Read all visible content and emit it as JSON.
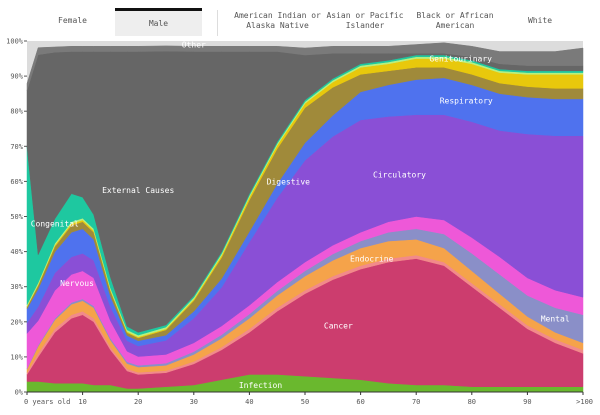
{
  "tabs": {
    "sex": [
      {
        "label": "Female",
        "active": false
      },
      {
        "label": "Male",
        "active": true
      }
    ],
    "race": [
      {
        "label": "American Indian or Alaska Native"
      },
      {
        "label": "Asian or Pacific Islander"
      },
      {
        "label": "Black or African American"
      },
      {
        "label": "White"
      }
    ]
  },
  "chart_data": {
    "type": "area",
    "stacked": true,
    "x": [
      0,
      2,
      5,
      8,
      10,
      12,
      15,
      18,
      20,
      25,
      30,
      35,
      40,
      45,
      50,
      55,
      60,
      65,
      70,
      75,
      80,
      85,
      90,
      95,
      100
    ],
    "xlim": [
      0,
      100
    ],
    "ylim": [
      0,
      100
    ],
    "x_tick_labels": [
      {
        "x": 0,
        "label": "0 years old"
      },
      {
        "x": 10,
        "label": "10"
      },
      {
        "x": 20,
        "label": "20"
      },
      {
        "x": 30,
        "label": "30"
      },
      {
        "x": 40,
        "label": "40"
      },
      {
        "x": 50,
        "label": "50"
      },
      {
        "x": 60,
        "label": "60"
      },
      {
        "x": 70,
        "label": "70"
      },
      {
        "x": 80,
        "label": "80"
      },
      {
        "x": 90,
        "label": "90"
      },
      {
        "x": 100,
        "label": ">100"
      }
    ],
    "y_tick_labels": [
      "0%",
      "10%",
      "20%",
      "30%",
      "40%",
      "50%",
      "60%",
      "70%",
      "80%",
      "90%",
      "100%"
    ],
    "series": [
      {
        "name": "Infection",
        "color": "#6ab82e",
        "label_at": [
          42,
          2
        ],
        "values": [
          3,
          3,
          2.5,
          2.5,
          2.5,
          2,
          2,
          1,
          1,
          1.5,
          2,
          3.5,
          5,
          5,
          4.5,
          4,
          3.5,
          2.5,
          2,
          2,
          1.5,
          1.5,
          1.5,
          1.5,
          1.5
        ]
      },
      {
        "name": "Cancer",
        "color": "#cc3d6e",
        "label_at": [
          56,
          19
        ],
        "values": [
          2,
          7,
          14.5,
          18.5,
          19.5,
          18,
          10,
          5,
          4,
          4,
          6,
          8.5,
          12,
          18,
          23.5,
          28,
          31.5,
          34.5,
          36,
          34,
          28.5,
          22.5,
          16.5,
          12.5,
          9.5
        ]
      },
      {
        "name": "",
        "color": "#f28a8a",
        "values": [
          0.5,
          1,
          1,
          1,
          1,
          1,
          0.8,
          0.6,
          0.6,
          0.6,
          0.7,
          0.8,
          1,
          1,
          1,
          1,
          1,
          1,
          1,
          1,
          1,
          1,
          1,
          1,
          1
        ]
      },
      {
        "name": "Endocrine",
        "color": "#f5a34a",
        "label_at": [
          62,
          38
        ],
        "values": [
          1,
          2,
          2.5,
          3,
          3,
          3,
          2,
          1.5,
          1.5,
          1.5,
          2,
          2.5,
          3,
          3.5,
          4,
          4.5,
          5,
          5,
          4.5,
          4,
          3.5,
          3,
          2.5,
          2,
          2
        ]
      },
      {
        "name": "Mental",
        "color": "#8a8fc8",
        "label_at": [
          95,
          21
        ],
        "values": [
          0.2,
          0.3,
          0.4,
          0.5,
          0.5,
          0.5,
          0.5,
          0.5,
          0.5,
          0.6,
          0.8,
          1,
          1.2,
          1.3,
          1.5,
          1.8,
          2,
          2.5,
          3,
          4,
          5,
          5.5,
          6,
          7,
          8
        ]
      },
      {
        "name": "Nervous",
        "color": "#ee58d8",
        "label_at": [
          9,
          31
        ],
        "values": [
          10,
          7,
          8,
          8,
          8,
          8,
          5,
          3,
          2.5,
          2.5,
          2.5,
          2.5,
          2.5,
          2.5,
          2.5,
          2.5,
          2.5,
          3,
          3.5,
          4,
          4.5,
          5,
          5,
          5,
          5
        ]
      },
      {
        "name": "Circulatory",
        "color": "#8a4fd6",
        "label_at": [
          67,
          62
        ],
        "values": [
          3,
          4,
          5,
          5,
          5,
          5,
          4,
          3,
          3,
          4,
          7,
          11,
          18,
          24,
          29,
          31,
          32,
          30,
          29,
          30,
          33,
          36,
          41,
          44,
          46
        ]
      },
      {
        "name": "Respiratory",
        "color": "#4f72ee",
        "label_at": [
          79,
          83
        ],
        "values": [
          4,
          5,
          6,
          7,
          7,
          6,
          3,
          1.5,
          1.5,
          1.5,
          2,
          2.5,
          3,
          4,
          5,
          6,
          8,
          9,
          10,
          10.5,
          10.5,
          10.5,
          10.5,
          10.5,
          10.5
        ]
      },
      {
        "name": "Digestive",
        "color": "#a08a3a",
        "label_at": [
          47,
          60
        ],
        "values": [
          0.5,
          1,
          1.5,
          2,
          2,
          2,
          1.5,
          0.8,
          0.8,
          1.5,
          3,
          6,
          9,
          10,
          10,
          8,
          5,
          4,
          3.5,
          3,
          3,
          3,
          3,
          3,
          3
        ]
      },
      {
        "name": "Genitourinary",
        "color": "#e8c80c",
        "label_at": [
          78,
          95
        ],
        "values": [
          0.2,
          0.3,
          0.4,
          0.5,
          0.5,
          0.5,
          0.4,
          0.3,
          0.3,
          0.3,
          0.4,
          0.6,
          0.8,
          1,
          1.2,
          1.5,
          2,
          2,
          2.5,
          2.5,
          3,
          3,
          3.5,
          4,
          4
        ]
      },
      {
        "name": "",
        "color": "#b8f080",
        "values": [
          0.5,
          0.5,
          0.5,
          0.5,
          0.5,
          0.5,
          0.5,
          0.5,
          0.5,
          0.5,
          0.5,
          0.5,
          0.5,
          0.5,
          0.5,
          0.5,
          0.5,
          0.5,
          0.5,
          0.5,
          0.5,
          0.5,
          0.5,
          0.5,
          0.5
        ]
      },
      {
        "name": "Congenital",
        "color": "#1ec8a0",
        "label_at": [
          5,
          48
        ],
        "values": [
          45,
          8,
          7,
          8,
          6,
          4,
          3,
          1,
          0.8,
          0.6,
          0.5,
          0.5,
          0.5,
          0.5,
          0.5,
          0.5,
          0.5,
          0.5,
          0.5,
          0.5,
          0.5,
          0.5,
          0.5,
          0.5,
          0.5
        ]
      },
      {
        "name": "External Causes",
        "color": "#666666",
        "label_at": [
          20,
          57.5
        ],
        "values": [
          16,
          57,
          47.5,
          40.5,
          41.5,
          46.5,
          64.3,
          78.3,
          80,
          78,
          69.6,
          57.1,
          40.5,
          25.7,
          12.8,
          7.2,
          3,
          2,
          0.5,
          0.5,
          1,
          1.5,
          1.5,
          1.5,
          1.5
        ]
      },
      {
        "name": "Other",
        "color": "#7a7a7a",
        "label_at": [
          30,
          99
        ],
        "values": [
          2,
          2,
          1.5,
          1.5,
          1.5,
          1.5,
          1.5,
          1.5,
          1.5,
          1.5,
          1.5,
          1.5,
          1.5,
          1.5,
          2,
          2,
          2,
          2,
          2.5,
          3,
          3,
          3.5,
          4,
          4,
          5
        ]
      }
    ],
    "grid": false,
    "background": "#dcdcdc"
  }
}
